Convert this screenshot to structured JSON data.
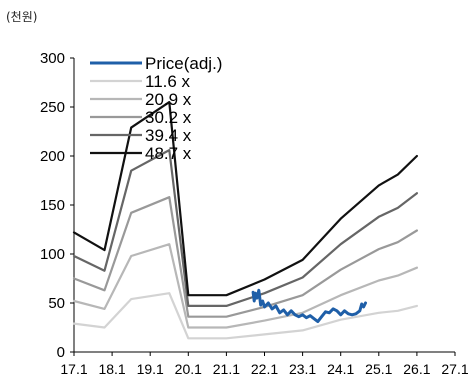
{
  "chart_data": {
    "type": "line",
    "unit_label": "(천원)",
    "title": "",
    "xlabel": "",
    "ylabel": "",
    "ylim": [
      0,
      300
    ],
    "yticks": [
      "0",
      "50",
      "100",
      "150",
      "200",
      "250",
      "300"
    ],
    "xlim": [
      17.1,
      27.1
    ],
    "xticks": [
      "17.1",
      "18.1",
      "19.1",
      "20.1",
      "21.1",
      "22.1",
      "23.1",
      "24.1",
      "25.1",
      "26.1",
      "27.1"
    ],
    "legend_position": "top-left",
    "series": [
      {
        "name": "Price(adj.)",
        "color": "#1f5fa8",
        "points": [
          [
            21.8,
            61
          ],
          [
            21.83,
            52
          ],
          [
            21.86,
            60
          ],
          [
            21.9,
            55
          ],
          [
            21.95,
            63
          ],
          [
            22.0,
            48
          ],
          [
            22.05,
            52
          ],
          [
            22.1,
            46
          ],
          [
            22.2,
            50
          ],
          [
            22.3,
            44
          ],
          [
            22.4,
            47
          ],
          [
            22.5,
            40
          ],
          [
            22.6,
            43
          ],
          [
            22.7,
            38
          ],
          [
            22.8,
            42
          ],
          [
            22.9,
            38
          ],
          [
            23.0,
            36
          ],
          [
            23.1,
            38
          ],
          [
            23.2,
            35
          ],
          [
            23.3,
            37
          ],
          [
            23.4,
            34
          ],
          [
            23.5,
            31
          ],
          [
            23.6,
            36
          ],
          [
            23.7,
            41
          ],
          [
            23.8,
            40
          ],
          [
            23.9,
            44
          ],
          [
            24.0,
            42
          ],
          [
            24.1,
            38
          ],
          [
            24.2,
            42
          ],
          [
            24.3,
            39
          ],
          [
            24.4,
            38
          ],
          [
            24.5,
            39
          ],
          [
            24.6,
            42
          ],
          [
            24.65,
            49
          ],
          [
            24.7,
            46
          ],
          [
            24.75,
            50
          ]
        ]
      },
      {
        "name": "11.6 x",
        "color": "#d3d3d3",
        "points": [
          [
            17.1,
            29
          ],
          [
            17.9,
            25
          ],
          [
            18.6,
            54
          ],
          [
            19.6,
            60
          ],
          [
            20.1,
            14
          ],
          [
            21.1,
            14
          ],
          [
            22.1,
            18
          ],
          [
            23.1,
            22
          ],
          [
            24.1,
            33
          ],
          [
            25.1,
            40
          ],
          [
            25.6,
            42
          ],
          [
            26.1,
            47
          ]
        ]
      },
      {
        "name": "20.9 x",
        "color": "#b7b7b7",
        "points": [
          [
            17.1,
            52
          ],
          [
            17.9,
            44
          ],
          [
            18.6,
            98
          ],
          [
            19.6,
            110
          ],
          [
            20.1,
            25
          ],
          [
            21.1,
            25
          ],
          [
            22.1,
            32
          ],
          [
            23.1,
            40
          ],
          [
            24.1,
            58
          ],
          [
            25.1,
            73
          ],
          [
            25.6,
            78
          ],
          [
            26.1,
            86
          ]
        ]
      },
      {
        "name": "30.2 x",
        "color": "#999999",
        "points": [
          [
            17.1,
            75
          ],
          [
            17.9,
            63
          ],
          [
            18.6,
            142
          ],
          [
            19.6,
            158
          ],
          [
            20.1,
            36
          ],
          [
            21.1,
            36
          ],
          [
            22.1,
            46
          ],
          [
            23.1,
            58
          ],
          [
            24.1,
            84
          ],
          [
            25.1,
            105
          ],
          [
            25.6,
            112
          ],
          [
            26.1,
            124
          ]
        ]
      },
      {
        "name": "39.4 x",
        "color": "#666666",
        "points": [
          [
            17.1,
            98
          ],
          [
            17.9,
            83
          ],
          [
            18.6,
            185
          ],
          [
            19.6,
            206
          ],
          [
            20.1,
            47
          ],
          [
            21.1,
            47
          ],
          [
            22.1,
            60
          ],
          [
            23.1,
            76
          ],
          [
            24.1,
            110
          ],
          [
            25.1,
            138
          ],
          [
            25.6,
            147
          ],
          [
            26.1,
            162
          ]
        ]
      },
      {
        "name": "48.7 x",
        "color": "#111111",
        "points": [
          [
            17.1,
            122
          ],
          [
            17.9,
            104
          ],
          [
            18.6,
            229
          ],
          [
            19.6,
            255
          ],
          [
            20.1,
            58
          ],
          [
            21.1,
            58
          ],
          [
            22.1,
            74
          ],
          [
            23.1,
            94
          ],
          [
            24.1,
            136
          ],
          [
            25.1,
            170
          ],
          [
            25.6,
            181
          ],
          [
            26.1,
            200
          ]
        ]
      }
    ]
  }
}
